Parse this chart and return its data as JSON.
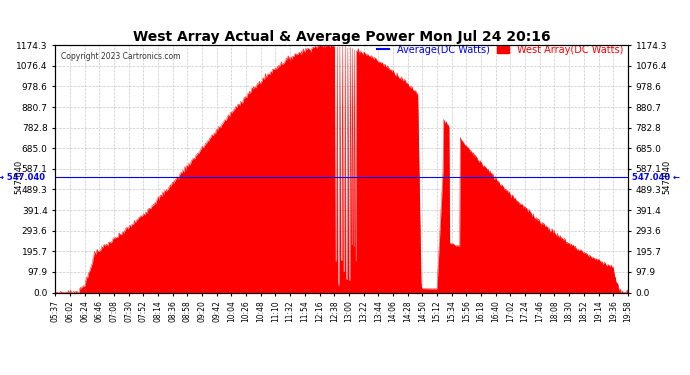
{
  "title": "West Array Actual & Average Power Mon Jul 24 20:16",
  "copyright": "Copyright 2023 Cartronics.com",
  "legend_avg": "Average(DC Watts)",
  "legend_west": "West Array(DC Watts)",
  "avg_value": 547.04,
  "ymax": 1174.3,
  "ymin": 0.0,
  "yticks": [
    0.0,
    97.9,
    195.7,
    293.6,
    391.4,
    489.3,
    587.1,
    685.0,
    782.8,
    880.7,
    978.6,
    1076.4,
    1174.3
  ],
  "avg_label": "547.040",
  "bg_color": "#ffffff",
  "fill_color": "#ff0000",
  "avg_line_color": "#0000ff",
  "grid_color": "#aaaaaa",
  "title_color": "#000000",
  "time_labels": [
    "05:37",
    "06:02",
    "06:24",
    "06:46",
    "07:08",
    "07:30",
    "07:52",
    "08:14",
    "08:36",
    "08:58",
    "09:20",
    "09:42",
    "10:04",
    "10:26",
    "10:48",
    "11:10",
    "11:32",
    "11:54",
    "12:16",
    "12:38",
    "13:00",
    "13:22",
    "13:44",
    "14:06",
    "14:28",
    "14:50",
    "15:12",
    "15:34",
    "15:56",
    "16:18",
    "16:40",
    "17:02",
    "17:24",
    "17:46",
    "18:08",
    "18:30",
    "18:52",
    "19:14",
    "19:36",
    "19:58"
  ]
}
